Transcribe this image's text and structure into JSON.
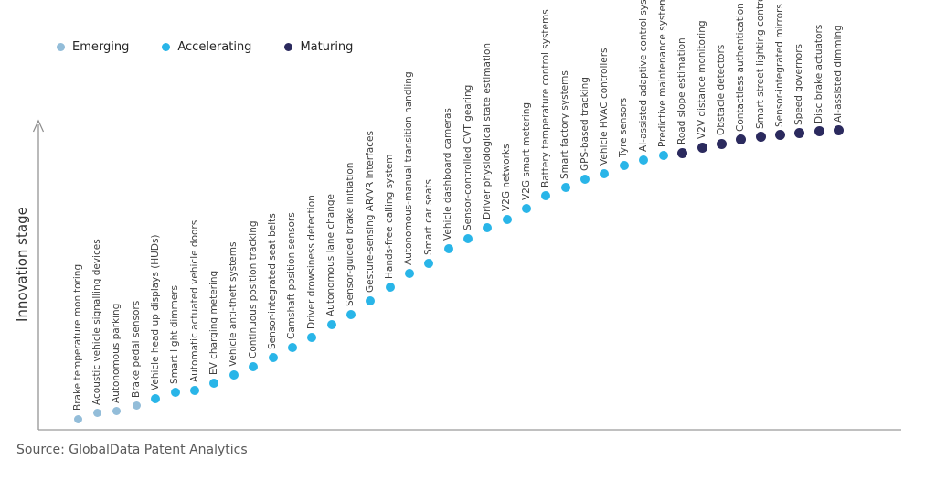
{
  "source_note": "Source: GlobalData Patent Analytics",
  "chart_data": {
    "type": "scatter",
    "title": "",
    "xlabel": "",
    "ylabel": "Innovation stage",
    "grid": false,
    "legend_position": "top-left",
    "y_axis_numeric": false,
    "note": "Innovation S-curve; score is relative height (0-100) of each point along the unlabeled innovation-stage axis",
    "legend": [
      {
        "key": "emerging",
        "label": "Emerging",
        "color": "#93bdd9"
      },
      {
        "key": "accelerating",
        "label": "Accelerating",
        "color": "#29b5e8"
      },
      {
        "key": "maturing",
        "label": "Maturing",
        "color": "#2b2a5e"
      }
    ],
    "points": [
      {
        "label": "Brake temperature monitoring",
        "stage": "emerging",
        "score": 3.6
      },
      {
        "label": "Acoustic vehicle signalling devices",
        "stage": "emerging",
        "score": 5.5
      },
      {
        "label": "Autonomous parking",
        "stage": "emerging",
        "score": 6.1
      },
      {
        "label": "Brake pedal sensors",
        "stage": "emerging",
        "score": 7.9
      },
      {
        "label": "Vehicle head up displays (HUDs)",
        "stage": "accelerating",
        "score": 10.3
      },
      {
        "label": "Smart light dimmers",
        "stage": "accelerating",
        "score": 12.4
      },
      {
        "label": "Automatic actuated vehicle doors",
        "stage": "accelerating",
        "score": 13.0
      },
      {
        "label": "EV charging metering",
        "stage": "accelerating",
        "score": 15.5
      },
      {
        "label": "Vehicle anti-theft systems",
        "stage": "accelerating",
        "score": 18.2
      },
      {
        "label": "Continuous position tracking",
        "stage": "accelerating",
        "score": 20.9
      },
      {
        "label": "Sensor-integrated seat belts",
        "stage": "accelerating",
        "score": 23.9
      },
      {
        "label": "Camshaft position sensors",
        "stage": "accelerating",
        "score": 27.3
      },
      {
        "label": "Driver drowsiness detection",
        "stage": "accelerating",
        "score": 30.6
      },
      {
        "label": "Autonomous lane change",
        "stage": "accelerating",
        "score": 34.8
      },
      {
        "label": "Sensor-guided brake initiation",
        "stage": "accelerating",
        "score": 38.2
      },
      {
        "label": "Gesture-sensing AR/VR interfaces",
        "stage": "accelerating",
        "score": 42.7
      },
      {
        "label": "Hands-free calling system",
        "stage": "accelerating",
        "score": 47.3
      },
      {
        "label": "Autonomous-manual transition handling",
        "stage": "accelerating",
        "score": 51.8
      },
      {
        "label": "Smart car seats",
        "stage": "accelerating",
        "score": 55.2
      },
      {
        "label": "Vehicle dashboard cameras",
        "stage": "accelerating",
        "score": 60.0
      },
      {
        "label": "Sensor-controlled CVT gearing",
        "stage": "accelerating",
        "score": 63.3
      },
      {
        "label": "Driver physiological state estimation",
        "stage": "accelerating",
        "score": 67.0
      },
      {
        "label": "V2G networks",
        "stage": "accelerating",
        "score": 69.7
      },
      {
        "label": "V2G smart metering",
        "stage": "accelerating",
        "score": 73.3
      },
      {
        "label": "Battery temperature control systems",
        "stage": "accelerating",
        "score": 77.6
      },
      {
        "label": "Smart factory systems",
        "stage": "accelerating",
        "score": 80.3
      },
      {
        "label": "GPS-based tracking",
        "stage": "accelerating",
        "score": 83.0
      },
      {
        "label": "Vehicle HVAC controllers",
        "stage": "accelerating",
        "score": 84.8
      },
      {
        "label": "Tyre sensors",
        "stage": "accelerating",
        "score": 87.6
      },
      {
        "label": "AI-assisted adaptive control systems",
        "stage": "accelerating",
        "score": 89.4
      },
      {
        "label": "Predictive maintenance systems",
        "stage": "accelerating",
        "score": 90.9
      },
      {
        "label": "Road slope estimation",
        "stage": "maturing",
        "score": 91.8
      },
      {
        "label": "V2V distance monitoring",
        "stage": "maturing",
        "score": 93.6
      },
      {
        "label": "Obstacle detectors",
        "stage": "maturing",
        "score": 94.8
      },
      {
        "label": "Contactless authentication",
        "stage": "maturing",
        "score": 96.1
      },
      {
        "label": "Smart street lighting controls",
        "stage": "maturing",
        "score": 97.0
      },
      {
        "label": "Sensor-integrated mirrors",
        "stage": "maturing",
        "score": 97.6
      },
      {
        "label": "Speed governors",
        "stage": "maturing",
        "score": 98.2
      },
      {
        "label": "Disc brake actuators",
        "stage": "maturing",
        "score": 98.8
      },
      {
        "label": "AI-assisted dimming",
        "stage": "maturing",
        "score": 99.1
      }
    ]
  }
}
